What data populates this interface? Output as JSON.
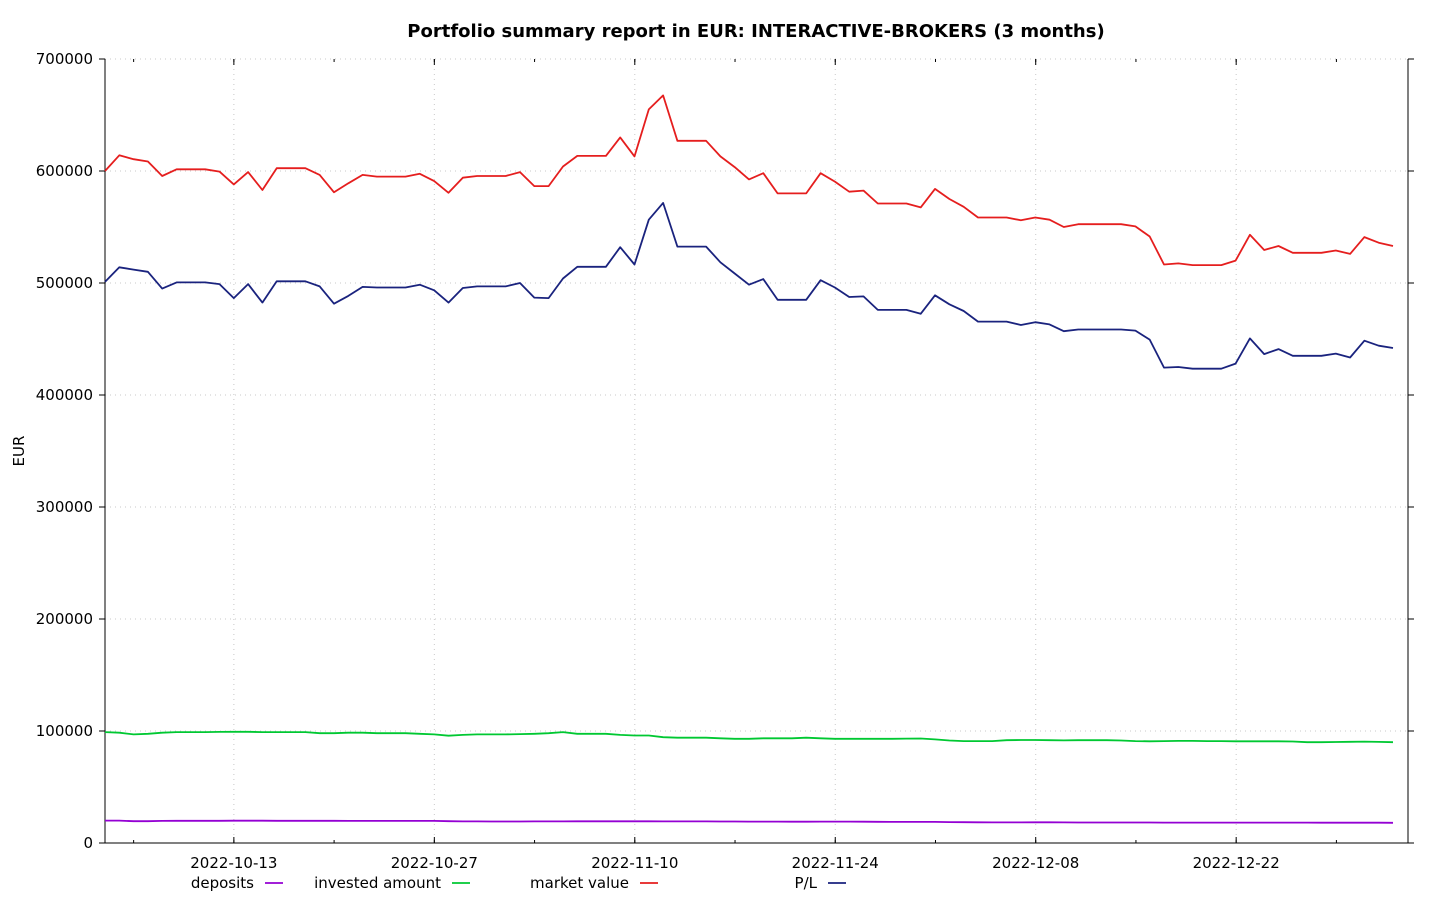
{
  "chart_data": {
    "type": "line",
    "title": "Portfolio summary report in EUR: INTERACTIVE-BROKERS (3 months)",
    "xlabel": "",
    "ylabel": "EUR",
    "ylim": [
      0,
      700000
    ],
    "y_ticks": [
      "0",
      "100000",
      "200000",
      "300000",
      "400000",
      "500000",
      "600000",
      "700000"
    ],
    "x_ticks": [
      "2022-10-13",
      "2022-10-27",
      "2022-11-10",
      "2022-11-24",
      "2022-12-08",
      "2022-12-22"
    ],
    "x_start": "2022-10-04",
    "x_end": "2023-01-03",
    "grid": true,
    "legend_position": "bottom",
    "series": [
      {
        "name": "deposits",
        "color": "#9400d3",
        "values": [
          20000,
          20000,
          19500,
          19500,
          19700,
          19800,
          19800,
          19800,
          19800,
          19900,
          19900,
          19900,
          19800,
          19800,
          19800,
          19800,
          19800,
          19700,
          19700,
          19700,
          19700,
          19700,
          19700,
          19700,
          19500,
          19300,
          19300,
          19200,
          19200,
          19200,
          19300,
          19300,
          19300,
          19400,
          19400,
          19400,
          19400,
          19400,
          19400,
          19300,
          19300,
          19300,
          19300,
          19200,
          19200,
          19100,
          19100,
          19100,
          19000,
          19000,
          19100,
          19100,
          19100,
          19000,
          18900,
          18800,
          18800,
          18800,
          18800,
          18700,
          18600,
          18500,
          18400,
          18400,
          18400,
          18500,
          18500,
          18400,
          18300,
          18300,
          18300,
          18300,
          18300,
          18300,
          18200,
          18200,
          18200,
          18200,
          18200,
          18200,
          18200,
          18200,
          18200,
          18200,
          18200,
          18100,
          18100,
          18100,
          18100,
          18100,
          18000
        ]
      },
      {
        "name": "invested amount",
        "color": "#00c832",
        "values": [
          99000,
          98500,
          97000,
          97500,
          98500,
          99000,
          99000,
          99000,
          99200,
          99300,
          99300,
          99000,
          99000,
          99000,
          99000,
          98000,
          98000,
          98500,
          98500,
          98000,
          98000,
          98000,
          97500,
          97000,
          95800,
          96500,
          97000,
          97000,
          97000,
          97200,
          97500,
          98000,
          99000,
          97500,
          97500,
          97500,
          96500,
          96000,
          96000,
          94500,
          94000,
          94000,
          94000,
          93500,
          93000,
          93000,
          93500,
          93500,
          93500,
          94000,
          93500,
          93000,
          93000,
          93000,
          93000,
          93000,
          93200,
          93300,
          92500,
          91500,
          91000,
          91000,
          91000,
          91800,
          92000,
          92000,
          91800,
          91600,
          91800,
          91800,
          91800,
          91500,
          91000,
          90800,
          91000,
          91200,
          91200,
          91000,
          91000,
          90800,
          90800,
          90800,
          90800,
          90600,
          90000,
          90000,
          90200,
          90400,
          90500,
          90300,
          90000
        ]
      },
      {
        "name": "market value",
        "color": "#e51e1e",
        "values": [
          600000,
          614000,
          610500,
          608500,
          595500,
          601500,
          601500,
          601500,
          599500,
          588000,
          599000,
          583000,
          602500,
          602500,
          602500,
          596500,
          581000,
          589000,
          596500,
          595000,
          595000,
          595000,
          597500,
          591000,
          580500,
          594000,
          595500,
          595500,
          595500,
          599000,
          586500,
          586500,
          604000,
          613500,
          613500,
          613500,
          630000,
          613000,
          655000,
          667500,
          627000,
          627000,
          627000,
          613000,
          603500,
          592500,
          598000,
          580000,
          580000,
          580000,
          598000,
          590500,
          581500,
          582500,
          571000,
          571000,
          571000,
          567500,
          584000,
          575000,
          568000,
          558500,
          558500,
          558500,
          556000,
          558500,
          556500,
          550000,
          552500,
          552500,
          552500,
          552500,
          550500,
          541500,
          516500,
          517500,
          516000,
          516000,
          516000,
          520000,
          543000,
          529500,
          533000,
          527000,
          527000,
          527000,
          529000,
          526000,
          541000,
          536000,
          533000
        ]
      },
      {
        "name": "P/L",
        "color": "#1a237e",
        "values": [
          501000,
          514000,
          512000,
          510000,
          495000,
          500500,
          500500,
          500500,
          499000,
          486500,
          499000,
          482500,
          501500,
          501500,
          501500,
          497000,
          481500,
          488500,
          496500,
          496000,
          496000,
          496000,
          498500,
          493500,
          482500,
          495500,
          497000,
          497000,
          497000,
          500000,
          487000,
          486500,
          504000,
          514500,
          514500,
          514500,
          532000,
          516500,
          556500,
          571500,
          532500,
          532500,
          532500,
          518500,
          508500,
          498500,
          503500,
          485000,
          485000,
          485000,
          502500,
          496000,
          487500,
          488000,
          476000,
          476000,
          476000,
          472500,
          489000,
          481000,
          475000,
          465500,
          465500,
          465500,
          462500,
          465000,
          463000,
          457000,
          458500,
          458500,
          458500,
          458500,
          457500,
          449500,
          424500,
          425000,
          423500,
          423500,
          423500,
          428000,
          450500,
          436500,
          441000,
          435000,
          435000,
          435000,
          437000,
          433500,
          448500,
          444000,
          442000
        ]
      }
    ]
  }
}
